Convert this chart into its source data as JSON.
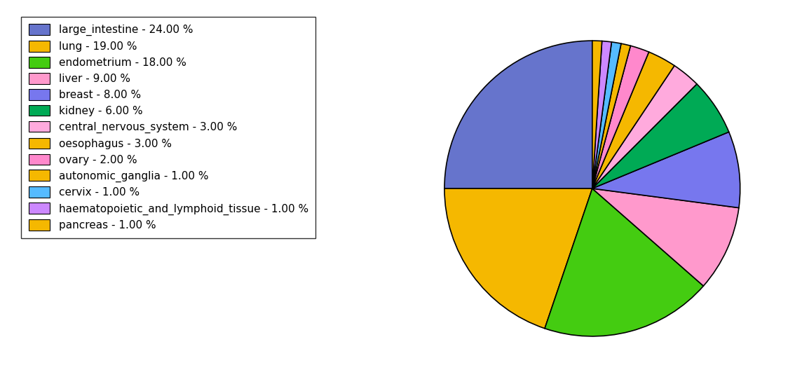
{
  "labels": [
    "large_intestine - 24.00 %",
    "lung - 19.00 %",
    "endometrium - 18.00 %",
    "liver - 9.00 %",
    "breast - 8.00 %",
    "kidney - 6.00 %",
    "central_nervous_system - 3.00 %",
    "oesophagus - 3.00 %",
    "ovary - 2.00 %",
    "autonomic_ganglia - 1.00 %",
    "cervix - 1.00 %",
    "haematopoietic_and_lymphoid_tissue - 1.00 %",
    "pancreas - 1.00 %"
  ],
  "values": [
    24,
    19,
    18,
    9,
    8,
    6,
    3,
    3,
    2,
    1,
    1,
    1,
    1
  ],
  "colors": [
    "#6674cc",
    "#f5b800",
    "#44cc11",
    "#ff99cc",
    "#7777ee",
    "#00aa55",
    "#ffaadd",
    "#f5b800",
    "#ff88cc",
    "#f5b800",
    "#55bbff",
    "#cc88ff",
    "#f5b800"
  ],
  "startangle": 90,
  "figsize": [
    11.34,
    5.38
  ],
  "dpi": 100
}
